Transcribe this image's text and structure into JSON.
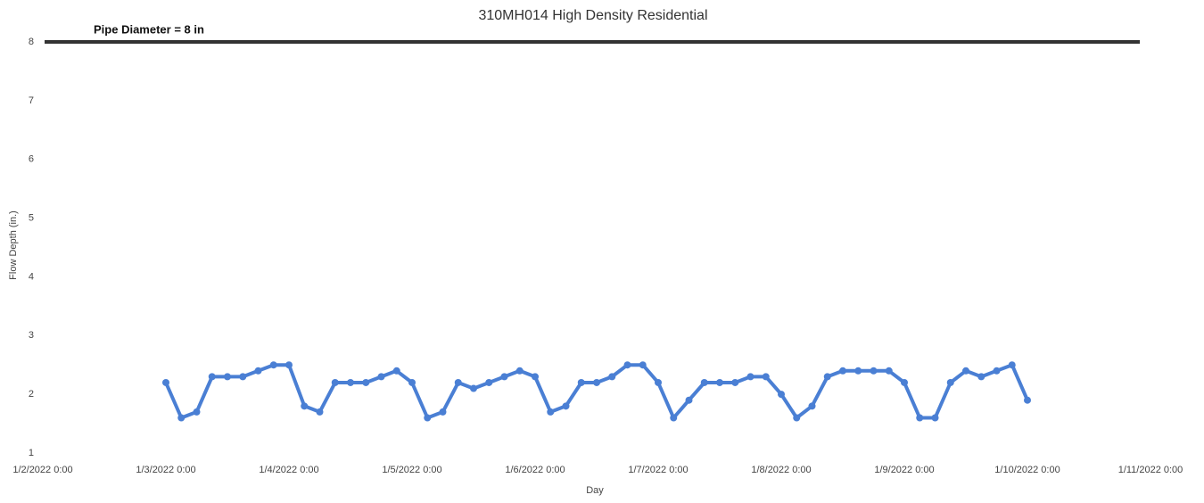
{
  "chart_data": {
    "type": "line",
    "title": "310MH014 High Density Residential",
    "x_label": "Day",
    "y_label": "Flow Depth (in.)",
    "reference_line": {
      "value": 8,
      "label": "Pipe Diameter = 8 in"
    },
    "x": [
      "1/3/2022 0:00",
      "1/3/2022 3:00",
      "1/3/2022 6:00",
      "1/3/2022 9:00",
      "1/3/2022 12:00",
      "1/3/2022 15:00",
      "1/3/2022 18:00",
      "1/3/2022 21:00",
      "1/4/2022 0:00",
      "1/4/2022 3:00",
      "1/4/2022 6:00",
      "1/4/2022 9:00",
      "1/4/2022 12:00",
      "1/4/2022 15:00",
      "1/4/2022 18:00",
      "1/4/2022 21:00",
      "1/5/2022 0:00",
      "1/5/2022 3:00",
      "1/5/2022 6:00",
      "1/5/2022 9:00",
      "1/5/2022 12:00",
      "1/5/2022 15:00",
      "1/5/2022 18:00",
      "1/5/2022 21:00",
      "1/6/2022 0:00",
      "1/6/2022 3:00",
      "1/6/2022 6:00",
      "1/6/2022 9:00",
      "1/6/2022 12:00",
      "1/6/2022 15:00",
      "1/6/2022 18:00",
      "1/6/2022 21:00",
      "1/7/2022 0:00",
      "1/7/2022 3:00",
      "1/7/2022 6:00",
      "1/7/2022 9:00",
      "1/7/2022 12:00",
      "1/7/2022 15:00",
      "1/7/2022 18:00",
      "1/7/2022 21:00",
      "1/8/2022 0:00",
      "1/8/2022 3:00",
      "1/8/2022 6:00",
      "1/8/2022 9:00",
      "1/8/2022 12:00",
      "1/8/2022 15:00",
      "1/8/2022 18:00",
      "1/8/2022 21:00",
      "1/9/2022 0:00",
      "1/9/2022 3:00",
      "1/9/2022 6:00",
      "1/9/2022 9:00",
      "1/9/2022 12:00",
      "1/9/2022 15:00",
      "1/9/2022 18:00",
      "1/9/2022 21:00",
      "1/10/2022 0:00"
    ],
    "series": [
      {
        "name": "Flow Depth",
        "color": "#4a7fd4",
        "values": [
          2.2,
          1.6,
          1.7,
          2.3,
          2.3,
          2.3,
          2.4,
          2.5,
          2.5,
          1.8,
          1.7,
          2.2,
          2.2,
          2.2,
          2.3,
          2.4,
          2.2,
          1.6,
          1.7,
          2.2,
          2.1,
          2.2,
          2.3,
          2.4,
          2.3,
          1.7,
          1.8,
          2.2,
          2.2,
          2.3,
          2.5,
          2.5,
          2.2,
          1.6,
          1.9,
          2.2,
          2.2,
          2.2,
          2.3,
          2.3,
          2.0,
          1.6,
          1.8,
          2.3,
          2.4,
          2.4,
          2.4,
          2.4,
          2.2,
          1.6,
          1.6,
          2.2,
          2.4,
          2.3,
          2.4,
          2.5,
          1.9
        ]
      }
    ],
    "xlim": [
      "1/2/2022 0:00",
      "1/11/2022 0:00"
    ],
    "xticks": [
      "1/2/2022 0:00",
      "1/3/2022 0:00",
      "1/4/2022 0:00",
      "1/5/2022 0:00",
      "1/6/2022 0:00",
      "1/7/2022 0:00",
      "1/8/2022 0:00",
      "1/9/2022 0:00",
      "1/10/2022 0:00",
      "1/11/2022 0:00"
    ],
    "ylim": [
      1,
      8.1
    ],
    "yticks": [
      1,
      2,
      3,
      4,
      5,
      6,
      7,
      8
    ],
    "grid": false
  }
}
